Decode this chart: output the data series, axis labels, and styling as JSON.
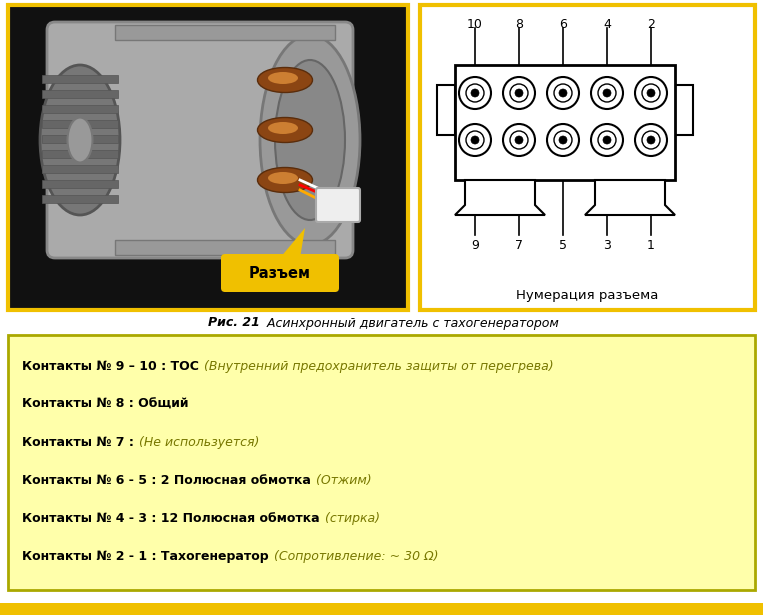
{
  "bg_color": "#ffffff",
  "left_photo_border": "#f0c000",
  "right_diagram_border": "#f0c000",
  "caption_bold": "Рис. 21",
  "caption_italic": " Асинхронный двигатель с тахогенератором",
  "info_box_bg": "#ffffaa",
  "info_box_border": "#aaa800",
  "connector_label": "Разъем",
  "connector_label_bg": "#f0c000",
  "diagram_label": "Нумерация разъема",
  "top_numbers": [
    "10",
    "8",
    "6",
    "4",
    "2"
  ],
  "bottom_numbers": [
    "9",
    "7",
    "5",
    "3",
    "1"
  ],
  "contacts": [
    {
      "bold": "Контакты № 9 – 10 : ТОС",
      "normal": " (Внутренний предохранитель защиты от перегрева)"
    },
    {
      "bold": "Контакты № 8 : Общий",
      "normal": ""
    },
    {
      "bold": "Контакты № 7 :",
      "normal": " (Не используется)"
    },
    {
      "bold": "Контакты № 6 - 5 : 2 Полюсная обмотка",
      "normal": " (Отжим)"
    },
    {
      "bold": "Контакты № 4 - 3 : 12 Полюсная обмотка",
      "normal": " (стирка)"
    },
    {
      "bold": "Контакты № 2 - 1 : Тахогенератор",
      "normal": " (Сопротивление: ~ 30 Ω)"
    }
  ],
  "footer_color": "#f0c000",
  "fig_width": 7.63,
  "fig_height": 6.15
}
